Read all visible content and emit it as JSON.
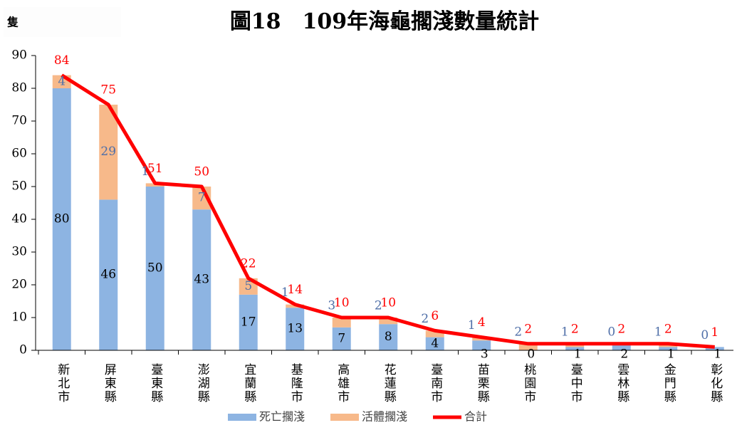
{
  "chart_data": {
    "type": "stacked_bar_line",
    "title": "圖18　109年海龜擱淺數量統計",
    "y_unit": "隻",
    "categories": [
      "新北市",
      "屏東縣",
      "臺東縣",
      "澎湖縣",
      "宜蘭縣",
      "基隆市",
      "高雄市",
      "花蓮縣",
      "臺南市",
      "苗栗縣",
      "桃園市",
      "臺中市",
      "雲林縣",
      "金門縣",
      "彰化縣"
    ],
    "series": [
      {
        "name": "死亡擱淺",
        "color": "#8db4e2",
        "label_color": "#000000",
        "values": [
          80,
          46,
          50,
          43,
          17,
          13,
          7,
          8,
          4,
          3,
          0,
          1,
          2,
          1,
          1
        ]
      },
      {
        "name": "活體擱淺",
        "color": "#f7b98a",
        "label_color": "#4f6fa8",
        "values": [
          4,
          29,
          1,
          7,
          5,
          1,
          3,
          2,
          2,
          1,
          2,
          1,
          0,
          1,
          0
        ]
      },
      {
        "name": "合計",
        "color": "#ff0000",
        "type": "line",
        "values": [
          84,
          75,
          51,
          50,
          22,
          14,
          10,
          10,
          6,
          4,
          2,
          2,
          2,
          2,
          1
        ]
      }
    ],
    "ylim": [
      0,
      90
    ],
    "yticks": [
      0,
      10,
      20,
      30,
      40,
      50,
      60,
      70,
      80,
      90
    ],
    "legend": "bottom"
  }
}
